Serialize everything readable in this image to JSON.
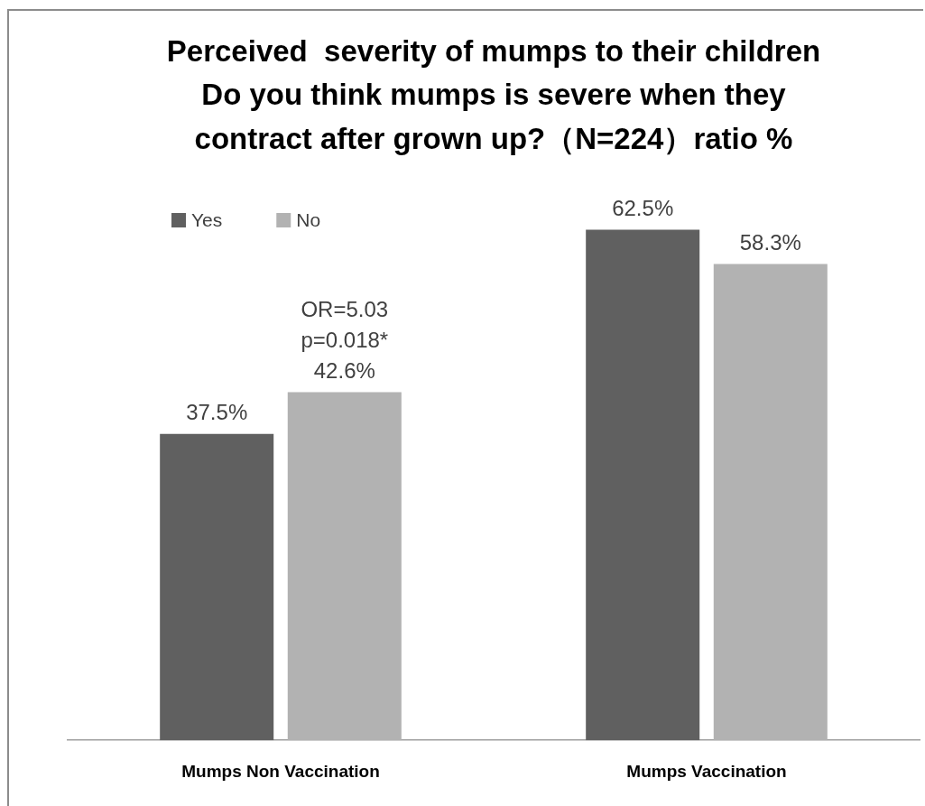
{
  "chart_data": {
    "type": "bar",
    "title": "Perceived  severity of mumps to their children\nDo you think mumps is severe when they\ncontract after grown up?（N=224）ratio %",
    "categories": [
      "Mumps Non Vaccination",
      "Mumps Vaccination"
    ],
    "series": [
      {
        "name": "Yes",
        "color": "#606060",
        "values": [
          37.5,
          62.5
        ],
        "value_labels": [
          "37.5%",
          "62.5%"
        ]
      },
      {
        "name": "No",
        "color": "#b2b2b2",
        "values": [
          42.6,
          58.3
        ],
        "value_labels": [
          "42.6%",
          "58.3%"
        ]
      }
    ],
    "annotations": [
      "OR=5.03",
      "p=0.018*"
    ],
    "legend": "top left"
  }
}
